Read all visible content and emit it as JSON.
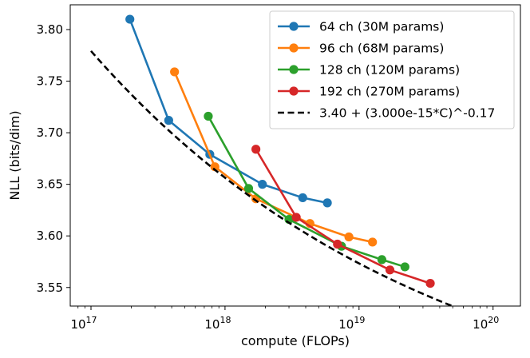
{
  "chart_data": {
    "type": "line",
    "title": "",
    "xlabel": "compute (FLOPs)",
    "ylabel": "NLL (bits/dim)",
    "xscale": "log",
    "xlim": [
      7e+16,
      1.6e+20
    ],
    "ylim": [
      3.532,
      3.824
    ],
    "xticks": [
      {
        "value": 1e+17,
        "base": "10",
        "exp": "17"
      },
      {
        "value": 1e+18,
        "base": "10",
        "exp": "18"
      },
      {
        "value": 1e+19,
        "base": "10",
        "exp": "19"
      },
      {
        "value": 1e+20,
        "base": "10",
        "exp": "20"
      }
    ],
    "yticks": [
      {
        "value": 3.55,
        "label": "3.55"
      },
      {
        "value": 3.6,
        "label": "3.60"
      },
      {
        "value": 3.65,
        "label": "3.65"
      },
      {
        "value": 3.7,
        "label": "3.70"
      },
      {
        "value": 3.75,
        "label": "3.75"
      },
      {
        "value": 3.8,
        "label": "3.80"
      }
    ],
    "legend_position": "top-right",
    "series": [
      {
        "name": "64 ch (30M params)",
        "color": "#1f77b4",
        "marker": true,
        "x": [
          1.95e+17,
          3.8e+17,
          7.7e+17,
          1.9e+18,
          3.8e+18,
          5.8e+18
        ],
        "y": [
          3.81,
          3.712,
          3.679,
          3.65,
          3.637,
          3.632
        ]
      },
      {
        "name": "96 ch (68M params)",
        "color": "#ff7f0e",
        "marker": true,
        "x": [
          4.2e+17,
          8.4e+17,
          1.7e+18,
          4.3e+18,
          8.4e+18,
          1.26e+19
        ],
        "y": [
          3.759,
          3.667,
          3.636,
          3.612,
          3.599,
          3.594
        ]
      },
      {
        "name": "128 ch (120M params)",
        "color": "#2ca02c",
        "marker": true,
        "x": [
          7.5e+17,
          1.5e+18,
          3e+18,
          7.4e+18,
          1.48e+19,
          2.2e+19
        ],
        "y": [
          3.716,
          3.646,
          3.616,
          3.59,
          3.577,
          3.57
        ]
      },
      {
        "name": "192 ch (270M params)",
        "color": "#d62728",
        "marker": true,
        "x": [
          1.7e+18,
          3.4e+18,
          6.9e+18,
          1.7e+19,
          3.4e+19
        ],
        "y": [
          3.684,
          3.618,
          3.592,
          3.567,
          3.554
        ]
      },
      {
        "name": "3.40 + (3.000e-15*C)^-0.17",
        "color": "#000000",
        "marker": false,
        "dashed": true,
        "formula": {
          "offset": 3.4,
          "coef": 3e-15,
          "exponent": -0.17
        },
        "x_range": [
          1e+17,
          1e+20
        ]
      }
    ]
  }
}
